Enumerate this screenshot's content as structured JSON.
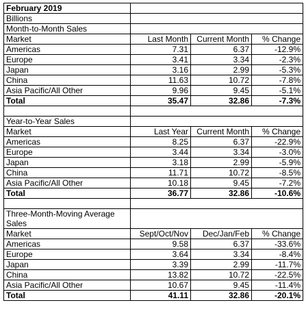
{
  "title": "February 2019",
  "unit": "Billions",
  "sections": [
    {
      "title": "Month-to-Month Sales",
      "header": [
        "Market",
        "Last Month",
        "Current Month",
        "% Change"
      ],
      "rows": [
        [
          "Americas",
          "7.31",
          "6.37",
          "-12.9%"
        ],
        [
          "Europe",
          "3.41",
          "3.34",
          "-2.3%"
        ],
        [
          "Japan",
          "3.16",
          "2.99",
          "-5.3%"
        ],
        [
          "China",
          "11.63",
          "10.72",
          "-7.8%"
        ],
        [
          "Asia Pacific/All Other",
          "9.96",
          "9.45",
          "-5.1%"
        ]
      ],
      "total": [
        "Total",
        "35.47",
        "32.86",
        "-7.3%"
      ]
    },
    {
      "title": "Year-to-Year Sales",
      "header": [
        "Market",
        "Last Year",
        "Current Month",
        "% Change"
      ],
      "rows": [
        [
          "Americas",
          "8.25",
          "6.37",
          "-22.9%"
        ],
        [
          "Europe",
          "3.44",
          "3.34",
          "-3.0%"
        ],
        [
          "Japan",
          "3.18",
          "2.99",
          "-5.9%"
        ],
        [
          "China",
          "11.71",
          "10.72",
          "-8.5%"
        ],
        [
          "Asia Pacific/All Other",
          "10.18",
          "9.45",
          "-7.2%"
        ]
      ],
      "total": [
        "Total",
        "36.77",
        "32.86",
        "-10.6%"
      ]
    },
    {
      "title": "Three-Month-Moving Average Sales",
      "header": [
        "Market",
        "Sept/Oct/Nov",
        "Dec/Jan/Feb",
        "% Change"
      ],
      "rows": [
        [
          "Americas",
          "9.58",
          "6.37",
          "-33.6%"
        ],
        [
          "Europe",
          "3.64",
          "3.34",
          "-8.4%"
        ],
        [
          "Japan",
          "3.39",
          "2.99",
          "-11.7%"
        ],
        [
          "China",
          "13.82",
          "10.72",
          "-22.5%"
        ],
        [
          "Asia Pacific/All Other",
          "10.67",
          "9.45",
          "-11.4%"
        ]
      ],
      "total": [
        "Total",
        "41.11",
        "32.86",
        "-20.1%"
      ]
    }
  ]
}
